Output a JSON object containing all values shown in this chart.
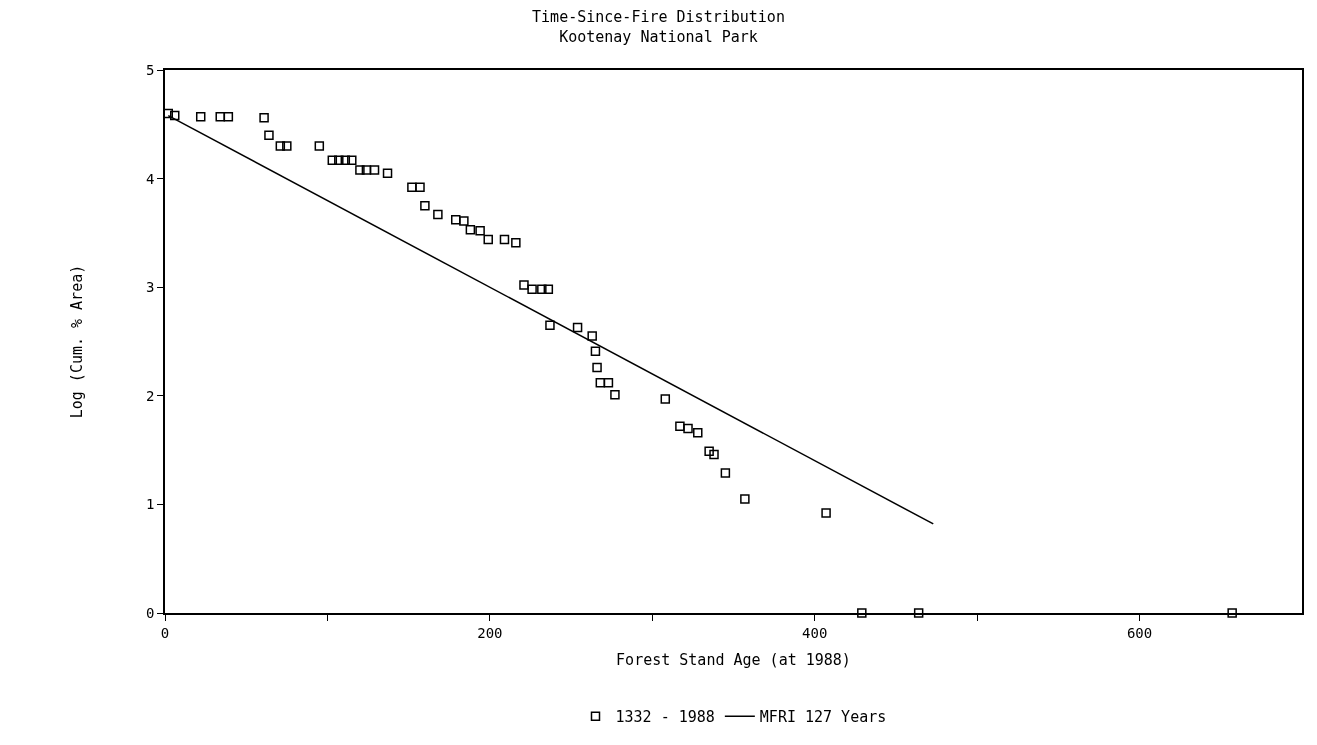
{
  "chart_data": {
    "type": "scatter",
    "title": "Time-Since-Fire Distribution",
    "subtitle": "Kootenay National Park",
    "xlabel": "Forest Stand Age (at 1988)",
    "ylabel": "Log (Cum. % Area)",
    "series": [
      {
        "name": "1332 - 1988",
        "color": "#000000",
        "marker": "square",
        "x": [
          2,
          6,
          22,
          34,
          39,
          61,
          64,
          71,
          75,
          95,
          103,
          107,
          111,
          115,
          120,
          124,
          129,
          137,
          152,
          157,
          160,
          168,
          179,
          184,
          188,
          194,
          199,
          209,
          216,
          221,
          226,
          232,
          236,
          237,
          254,
          263,
          265,
          266,
          268,
          273,
          277,
          308,
          317,
          322,
          328,
          335,
          338,
          345,
          357,
          407,
          429,
          464,
          657
        ],
        "values": [
          4.6,
          4.58,
          4.57,
          4.57,
          4.57,
          4.56,
          4.4,
          4.3,
          4.3,
          4.3,
          4.17,
          4.17,
          4.17,
          4.17,
          4.08,
          4.08,
          4.08,
          4.05,
          3.92,
          3.92,
          3.75,
          3.67,
          3.62,
          3.61,
          3.53,
          3.52,
          3.44,
          3.44,
          3.41,
          3.02,
          2.98,
          2.98,
          2.98,
          2.65,
          2.63,
          2.55,
          2.41,
          2.26,
          2.12,
          2.12,
          2.01,
          1.97,
          1.72,
          1.7,
          1.66,
          1.49,
          1.46,
          1.29,
          1.05,
          0.92,
          0,
          0,
          0
        ]
      },
      {
        "name": "MFRI 127 Years",
        "type": "line",
        "color": "#000000",
        "line_style": "solid",
        "x": [
          2,
          473
        ],
        "values": [
          4.58,
          0.82
        ]
      }
    ],
    "xlim": [
      0,
      700
    ],
    "ylim": [
      0,
      5
    ],
    "xticks": [
      0,
      {
        "value": 100,
        "label": null
      },
      200,
      {
        "value": 300,
        "label": null
      },
      400,
      {
        "value": 500,
        "label": null
      },
      600
    ],
    "yticks": [
      0,
      1,
      2,
      3,
      4,
      5
    ],
    "legend": "bottom"
  }
}
